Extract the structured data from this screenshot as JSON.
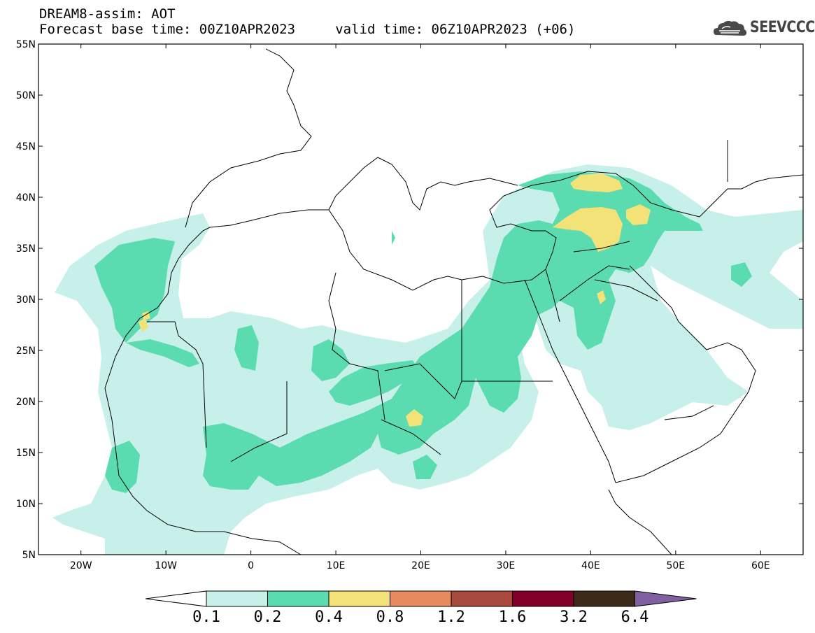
{
  "header": {
    "line1": "DREAM8-assim: AOT",
    "line2": "Forecast base time: 00Z10APR2023     valid time: 06Z10APR2023 (+06)"
  },
  "logo": {
    "text": "SEEVCCC",
    "icon": "cloud-logo-icon"
  },
  "map": {
    "lon_range": [
      -25,
      65
    ],
    "lat_range": [
      5,
      55
    ],
    "x_ticks": [
      "20W",
      "10W",
      "0",
      "10E",
      "20E",
      "30E",
      "40E",
      "50E",
      "60E"
    ],
    "y_ticks": [
      "55N",
      "50N",
      "45N",
      "40N",
      "35N",
      "30N",
      "25N",
      "20N",
      "15N",
      "10N",
      "5N"
    ]
  },
  "colorbar": {
    "labels": [
      "0.1",
      "0.2",
      "0.4",
      "0.8",
      "1.2",
      "1.6",
      "3.2",
      "6.4"
    ],
    "colors": [
      "#ffffff",
      "#c8f0ea",
      "#5bdcb0",
      "#f2e278",
      "#e88a60",
      "#a84a3e",
      "#800028",
      "#3e2a18",
      "#8060a0"
    ]
  }
}
